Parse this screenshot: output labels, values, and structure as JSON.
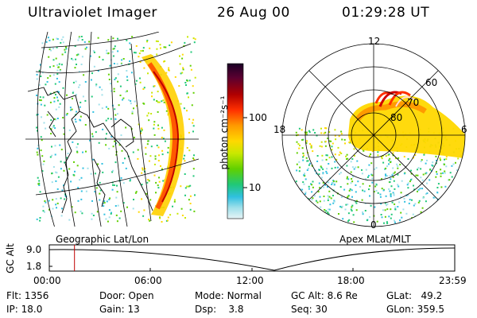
{
  "header": {
    "title": "Ultraviolet Imager",
    "date": "26 Aug 00",
    "time": "01:29:28 UT"
  },
  "left_panel": {
    "caption": "Geographic Lat/Lon"
  },
  "right_panel": {
    "caption": "Apex MLat/MLT",
    "mlt_labels": {
      "top": "12",
      "left": "18",
      "right": "6",
      "bottom": "0"
    },
    "mlat_labels": [
      "60",
      "70",
      "80"
    ]
  },
  "colorbar": {
    "unit_label": "photon cm⁻²s⁻¹",
    "tick_labels": [
      "100",
      "10"
    ],
    "scale": "log",
    "colors": [
      "#1a0026",
      "#5a0030",
      "#b00000",
      "#ff3000",
      "#ff9a00",
      "#ffd800",
      "#c8e800",
      "#60d000",
      "#20c878",
      "#30c0e0",
      "#a0e0ea",
      "#e6f4f6"
    ]
  },
  "timeline": {
    "ylabel": "GC Alt",
    "yticks": [
      "9.0",
      "1.8"
    ],
    "xticks": [
      "00:00",
      "06:00",
      "12:00",
      "18:00",
      "23:59"
    ],
    "marker_time": "01:29:28"
  },
  "info": {
    "flt_label": "Flt:",
    "flt_value": "1356",
    "ip_label": "IP:",
    "ip_value": "18.0",
    "door_label": "Door:",
    "door_value": "Open",
    "gain_label": "Gain:",
    "gain_value": "13",
    "mode_label": "Mode:",
    "mode_value": "Normal",
    "dsp_label": "Dsp:",
    "dsp_value": "3.8",
    "gcalt_label": "GC Alt:",
    "gcalt_value": "8.6 Re",
    "seq_label": "Seq:",
    "seq_value": "30",
    "glat_label": "GLat:",
    "glat_value": "49.2",
    "glon_label": "GLon:",
    "glon_value": "359.5"
  }
}
